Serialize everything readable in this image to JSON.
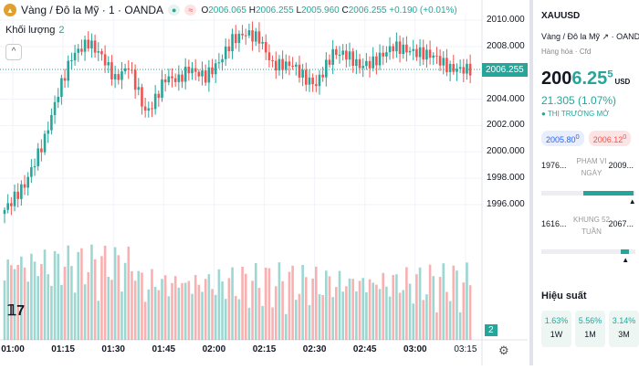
{
  "legend": {
    "title": "Vàng / Đô la Mỹ · 1 · OANDA",
    "o_label": "O",
    "o": "2006.065",
    "h_label": "H",
    "h": "2006.255",
    "l_label": "L",
    "l": "2005.960",
    "c_label": "C",
    "c": "2006.255",
    "change": "+0.190 (+0.01%)",
    "volume_label": "Khối lượng",
    "volume_value": "2"
  },
  "colors": {
    "up": "#26a69a",
    "down": "#ef5350"
  },
  "chart_data": {
    "type": "candlestick",
    "x_ticks": [
      "01:00",
      "01:15",
      "01:30",
      "01:45",
      "02:00",
      "02:15",
      "02:30",
      "02:45",
      "03:00",
      "03:15"
    ],
    "y_ticks": [
      "2010.000",
      "2008.000",
      "2006.000",
      "2004.000",
      "2002.000",
      "2000.000",
      "1998.000",
      "1996.000"
    ],
    "ylim": [
      1995,
      2010.5
    ],
    "last_price": "2006.255",
    "volume_last": "2",
    "price_keypoints": [
      [
        0,
        1995.6
      ],
      [
        6,
        1997.5
      ],
      [
        12,
        2001
      ],
      [
        16,
        2004.5
      ],
      [
        20,
        2007.2
      ],
      [
        22,
        2007.7
      ],
      [
        25,
        2008.3
      ],
      [
        29,
        2007.3
      ],
      [
        33,
        2005.5
      ],
      [
        37,
        2006.5
      ],
      [
        40,
        2004.5
      ],
      [
        42,
        2003
      ],
      [
        44,
        2003.5
      ],
      [
        48,
        2005.6
      ],
      [
        52,
        2005.5
      ],
      [
        55,
        2006.3
      ],
      [
        60,
        2005.7
      ],
      [
        64,
        2006.8
      ],
      [
        68,
        2008.5
      ],
      [
        72,
        2009
      ],
      [
        76,
        2008.6
      ],
      [
        80,
        2006.6
      ],
      [
        86,
        2006.6
      ],
      [
        90,
        2005.5
      ],
      [
        93,
        2005.1
      ],
      [
        98,
        2007.5
      ],
      [
        102,
        2007.4
      ],
      [
        106,
        2006.5
      ],
      [
        110,
        2006.8
      ],
      [
        116,
        2008
      ],
      [
        122,
        2007.6
      ],
      [
        128,
        2007.3
      ],
      [
        133,
        2006.3
      ],
      [
        139,
        2006.25
      ]
    ]
  },
  "panel": {
    "symbol": "XAUUSD",
    "desc": "Vàng / Đô la Mỹ",
    "exchange": "OANDA",
    "category": "Hàng hóa",
    "type": "Cfd",
    "price_main": "200",
    "price_green": "6.25",
    "price_sup": "5",
    "currency": "USD",
    "change": "21.305 (1.07%)",
    "market_status": "THỊ TRƯỜNG MỞ",
    "bid": "2005.80",
    "bid_sup": "0",
    "ask": "2006.12",
    "ask_sup": "0",
    "day_range": {
      "low": "1976...",
      "label": "PHẠM VI NGÀY",
      "high": "2009...",
      "fill_start": 0.45,
      "fill_end": 0.98,
      "marker": 0.97
    },
    "week52_range": {
      "low": "1616...",
      "label": "KHUNG 52 TUẦN",
      "high": "2067...",
      "fill_start": 0.84,
      "fill_end": 0.93,
      "marker": 0.9
    },
    "performance_label": "Hiệu suất",
    "performance": [
      {
        "value": "1.63%",
        "period": "1W"
      },
      {
        "value": "5.56%",
        "period": "1M"
      },
      {
        "value": "3.14%",
        "period": "3M"
      }
    ]
  }
}
